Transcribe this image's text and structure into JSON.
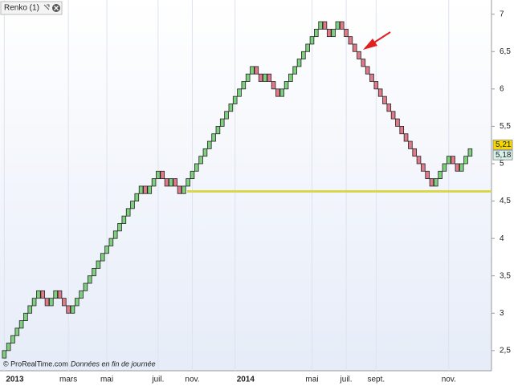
{
  "chart_data": {
    "type": "renko",
    "title": "Renko (1)",
    "footer": "© ProRealTime.com",
    "footer_note": "Données en fin de journée",
    "brick_size": 0.1,
    "up_color": "#7ed07e",
    "down_color": "#e07a8a",
    "values": [
      2.5,
      2.6,
      2.7,
      2.8,
      2.9,
      3.0,
      3.1,
      3.2,
      3.3,
      3.2,
      3.1,
      3.2,
      3.3,
      3.2,
      3.1,
      3.0,
      3.1,
      3.2,
      3.3,
      3.4,
      3.5,
      3.6,
      3.7,
      3.8,
      3.9,
      4.0,
      4.1,
      4.2,
      4.3,
      4.4,
      4.5,
      4.6,
      4.7,
      4.6,
      4.7,
      4.8,
      4.9,
      4.8,
      4.7,
      4.8,
      4.7,
      4.6,
      4.7,
      4.8,
      4.9,
      5.0,
      5.1,
      5.2,
      5.3,
      5.4,
      5.5,
      5.6,
      5.7,
      5.8,
      5.9,
      6.0,
      6.1,
      6.2,
      6.3,
      6.2,
      6.1,
      6.2,
      6.1,
      6.0,
      5.9,
      6.0,
      6.1,
      6.2,
      6.3,
      6.4,
      6.5,
      6.6,
      6.7,
      6.8,
      6.9,
      6.8,
      6.7,
      6.8,
      6.9,
      6.8,
      6.7,
      6.6,
      6.5,
      6.4,
      6.3,
      6.2,
      6.1,
      6.0,
      5.9,
      5.8,
      5.7,
      5.6,
      5.5,
      5.4,
      5.3,
      5.2,
      5.1,
      5.0,
      4.9,
      4.8,
      4.7,
      4.8,
      4.9,
      5.0,
      5.1,
      5.0,
      4.9,
      5.0,
      5.1,
      5.2
    ],
    "xlim": [
      -1,
      114
    ],
    "xticks": [
      {
        "value": 0,
        "label": "2013"
      },
      {
        "value": 15,
        "label": "mars"
      },
      {
        "value": 24,
        "label": "mai"
      },
      {
        "value": 36,
        "label": "juil."
      },
      {
        "value": 44,
        "label": "nov."
      },
      {
        "value": 54,
        "label": "2014"
      },
      {
        "value": 72,
        "label": "mai"
      },
      {
        "value": 80,
        "label": "juil."
      },
      {
        "value": 87,
        "label": "sept."
      },
      {
        "value": 104,
        "label": "nov."
      }
    ],
    "bold_xticks": [
      0,
      5
    ],
    "ylim": [
      2.23,
      7.19
    ],
    "yticks": [
      {
        "value": 2.5,
        "label": "2,5"
      },
      3,
      {
        "value": 3.5,
        "label": "3,5"
      },
      4,
      {
        "value": 4.5,
        "label": "4,5"
      },
      5,
      {
        "value": 5.5,
        "label": "5,5"
      },
      6,
      {
        "value": 6.5,
        "label": "6,5"
      },
      7
    ],
    "support_line": 4.63,
    "price_labels": [
      {
        "value": 5.21,
        "label": "5,21",
        "color": "#f5d800"
      },
      {
        "value": 5.18,
        "label": "5,18",
        "color": "#d6f0ea"
      }
    ]
  }
}
